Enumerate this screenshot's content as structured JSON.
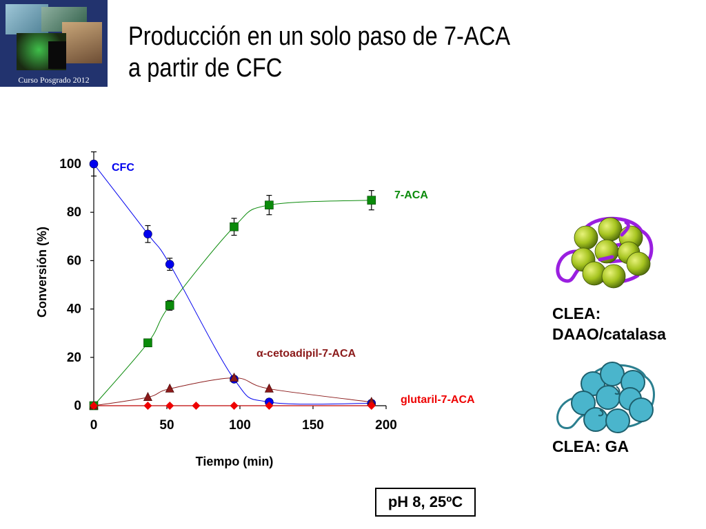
{
  "logo": {
    "caption": "Curso Posgrado 2012"
  },
  "title": {
    "line1": "Producción en un solo paso de 7-ACA",
    "line2": "a partir de CFC"
  },
  "clea_top": {
    "line1": "CLEA:",
    "line2": "DAAO/catalasa"
  },
  "clea_bottom": {
    "label": "CLEA: GA"
  },
  "condition": "pH 8, 25ºC",
  "chart_data": {
    "type": "scatter",
    "xlabel": "Tiempo (min)",
    "ylabel": "Conversión (%)",
    "xlim": [
      0,
      200
    ],
    "ylim": [
      0,
      100
    ],
    "xticks": [
      0,
      50,
      100,
      150,
      200
    ],
    "yticks": [
      0,
      20,
      40,
      60,
      80,
      100
    ],
    "grid": false,
    "series": [
      {
        "name": "CFC",
        "color": "#0000ee",
        "marker": "circle",
        "x": [
          0,
          37,
          52,
          96,
          120,
          190
        ],
        "y": [
          100,
          71,
          58.5,
          11,
          1.5,
          1
        ],
        "err": [
          5,
          3.5,
          2.5,
          1,
          0,
          0
        ]
      },
      {
        "name": "7-ACA",
        "color": "#0a8a0a",
        "marker": "square",
        "x": [
          0,
          37,
          52,
          96,
          120,
          190
        ],
        "y": [
          0,
          26,
          41.5,
          74,
          83,
          85
        ],
        "err": [
          0,
          0,
          2,
          3.5,
          4,
          4
        ]
      },
      {
        "name": "α-cetoadipil-7-ACA",
        "color": "#8b1a1a",
        "marker": "triangle",
        "x": [
          0,
          37,
          52,
          96,
          120,
          190
        ],
        "y": [
          0,
          3.5,
          7,
          11.5,
          7,
          1.5
        ],
        "err": [
          0,
          0,
          0,
          0,
          0,
          0
        ]
      },
      {
        "name": "glutaril-7-ACA",
        "color": "#ee0000",
        "marker": "diamond",
        "x": [
          0,
          37,
          52,
          70,
          96,
          120,
          190
        ],
        "y": [
          0,
          0,
          0,
          0,
          0,
          0,
          0
        ],
        "err": [
          0,
          0,
          0,
          0,
          0,
          0,
          0
        ]
      }
    ]
  }
}
